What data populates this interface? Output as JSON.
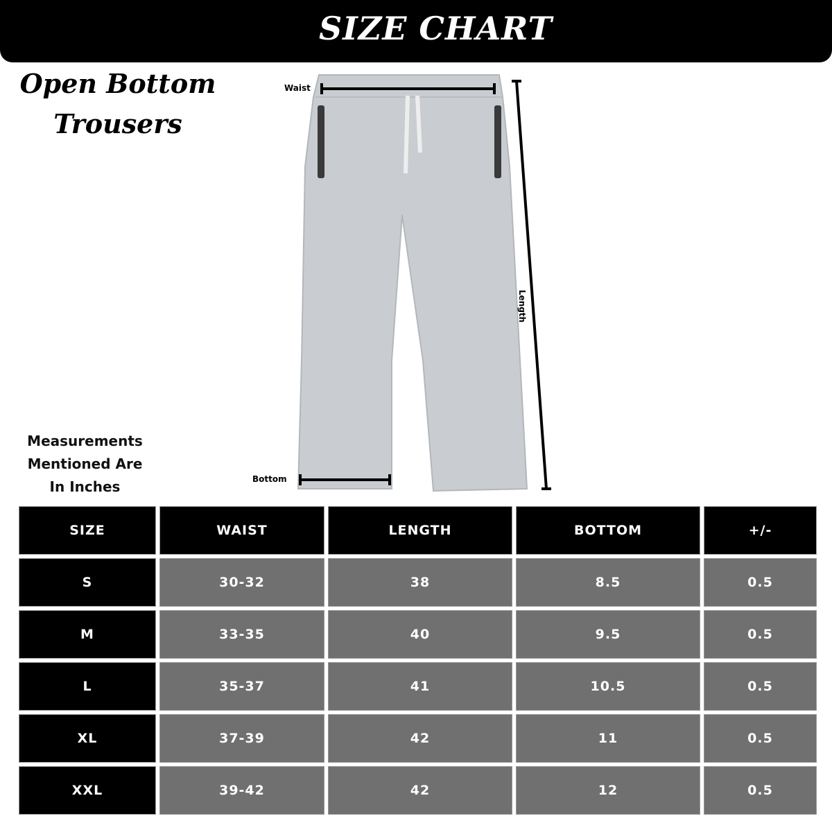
{
  "header": {
    "title": "SIZE CHART"
  },
  "product": {
    "name_line1": "Open Bottom",
    "name_line2": "Trousers"
  },
  "note": {
    "line1": "Measurements",
    "line2": "Mentioned Are",
    "line3": "In Inches"
  },
  "diagram": {
    "waist_label": "Waist",
    "length_label": "Length",
    "bottom_label": "Bottom",
    "garment_color": "#c9cdd1"
  },
  "colors": {
    "header_bg": "#000000",
    "value_cell_bg": "#707070",
    "text": "#ffffff"
  },
  "table": {
    "headers": [
      "SIZE",
      "WAIST",
      "LENGTH",
      "BOTTOM",
      "+/-"
    ],
    "rows": [
      [
        "S",
        "30-32",
        "38",
        "8.5",
        "0.5"
      ],
      [
        "M",
        "33-35",
        "40",
        "9.5",
        "0.5"
      ],
      [
        "L",
        "35-37",
        "41",
        "10.5",
        "0.5"
      ],
      [
        "XL",
        "37-39",
        "42",
        "11",
        "0.5"
      ],
      [
        "XXL",
        "39-42",
        "42",
        "12",
        "0.5"
      ]
    ]
  }
}
